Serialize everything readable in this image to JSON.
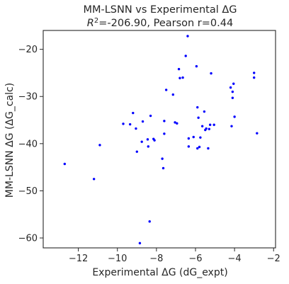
{
  "chart_data": {
    "type": "scatter",
    "title": "MM-LSNN vs Experimental ΔG",
    "subtitle": {
      "r2_symbol": "R",
      "r2_sup": "2",
      "r2_rest": "=-206.90, Pearson r=0.44"
    },
    "xlabel": "Experimental ΔG (dG_expt)",
    "ylabel": "MM-LSNN ΔG (ΔG_calc)",
    "xlim": [
      -13.8,
      -1.9
    ],
    "ylim": [
      -62.1,
      -16.0
    ],
    "xticks": [
      -12,
      -10,
      -8,
      -6,
      -4,
      -2
    ],
    "yticks": [
      -60,
      -50,
      -40,
      -30,
      -20
    ],
    "xtick_labels": [
      "−12",
      "−10",
      "−8",
      "−6",
      "−4",
      "−2"
    ],
    "ytick_labels": [
      "−60",
      "−50",
      "−40",
      "−30",
      "−20"
    ],
    "grid": false,
    "point_color": "#0000ff",
    "series": [
      {
        "points": [
          [
            -12.7,
            -44.3
          ],
          [
            -11.2,
            -47.5
          ],
          [
            -10.9,
            -40.3
          ],
          [
            -9.7,
            -35.8
          ],
          [
            -9.35,
            -35.9
          ],
          [
            -9.2,
            -33.5
          ],
          [
            -9.05,
            -36.8
          ],
          [
            -9.0,
            -41.7
          ],
          [
            -8.85,
            -61.1
          ],
          [
            -8.75,
            -39.6
          ],
          [
            -8.7,
            -35.3
          ],
          [
            -8.45,
            -39.1
          ],
          [
            -8.42,
            -40.6
          ],
          [
            -8.35,
            -56.5
          ],
          [
            -8.3,
            -34.1
          ],
          [
            -8.15,
            -39.0
          ],
          [
            -8.1,
            -39.3
          ],
          [
            -7.7,
            -43.2
          ],
          [
            -7.65,
            -45.2
          ],
          [
            -7.6,
            -37.9
          ],
          [
            -7.6,
            -35.2
          ],
          [
            -7.5,
            -28.6
          ],
          [
            -7.15,
            -29.6
          ],
          [
            -7.05,
            -35.5
          ],
          [
            -6.95,
            -35.7
          ],
          [
            -6.85,
            -24.2
          ],
          [
            -6.8,
            -26.1
          ],
          [
            -6.65,
            -26.0
          ],
          [
            -6.5,
            -21.4
          ],
          [
            -6.4,
            -17.2
          ],
          [
            -6.35,
            -38.9
          ],
          [
            -6.35,
            -40.6
          ],
          [
            -6.1,
            -38.6
          ],
          [
            -5.95,
            -23.6
          ],
          [
            -5.9,
            -32.3
          ],
          [
            -5.9,
            -41.0
          ],
          [
            -5.85,
            -34.5
          ],
          [
            -5.8,
            -40.7
          ],
          [
            -5.75,
            -38.7
          ],
          [
            -5.65,
            -36.3
          ],
          [
            -5.55,
            -33.2
          ],
          [
            -5.5,
            -37.1
          ],
          [
            -5.45,
            -36.8
          ],
          [
            -5.35,
            -41.0
          ],
          [
            -5.3,
            -36.9
          ],
          [
            -5.25,
            -36.0
          ],
          [
            -5.2,
            -25.1
          ],
          [
            -5.05,
            -36.0
          ],
          [
            -4.2,
            -28.1
          ],
          [
            -4.15,
            -36.3
          ],
          [
            -4.1,
            -29.0
          ],
          [
            -4.1,
            -30.3
          ],
          [
            -4.05,
            -27.3
          ],
          [
            -4.0,
            -34.3
          ],
          [
            -3.0,
            -25.0
          ],
          [
            -3.0,
            -26.0
          ],
          [
            -2.85,
            -37.8
          ]
        ]
      }
    ]
  }
}
